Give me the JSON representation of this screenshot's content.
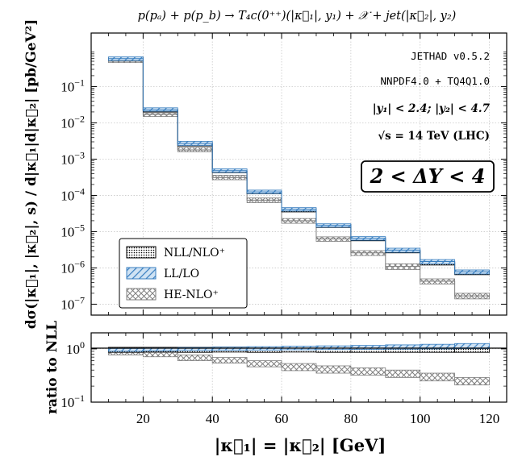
{
  "chart_data": {
    "type": "bar",
    "title": "p(pₐ) + p(p_b) → T₄c(0⁺⁺)(|κ⃗₁|, y₁) + 𝒳 + jet(|κ⃗₂|, y₂)",
    "xlabel": "|κ⃗₁| = |κ⃗₂| [GeV]",
    "ylabel": "dσ(|κ⃗₁|, |κ⃗₂|, s) / d|κ⃗₁|d|κ⃗₂| [pb/GeV²]",
    "ratio_ylabel": "ratio to NLL",
    "annotations": {
      "code": "JETHAD v0.5.2",
      "pdf": "NNPDF4.0 + TQ4Q1.0",
      "rapidity": "|y₁| < 2.4;  |y₂| < 4.7",
      "energy": "√s = 14 TeV (LHC)",
      "delta_y": "2 < ΔY < 4"
    },
    "xlim": [
      5,
      125
    ],
    "ylim": [
      5e-08,
      3
    ],
    "ratio_ylim": [
      0.1,
      2
    ],
    "bin_edges": [
      10,
      20,
      30,
      40,
      50,
      60,
      70,
      80,
      90,
      100,
      110,
      120
    ],
    "x_ticks": [
      20,
      40,
      60,
      80,
      100,
      120
    ],
    "x_tick_labels": [
      "20",
      "40",
      "60",
      "80",
      "100",
      "120"
    ],
    "y_ticks": [
      1e-07,
      1e-06,
      1e-05,
      0.0001,
      0.001,
      0.01,
      0.1
    ],
    "y_tick_labels": [
      {
        "base": "10",
        "exp": "−7"
      },
      {
        "base": "10",
        "exp": "−6"
      },
      {
        "base": "10",
        "exp": "−5"
      },
      {
        "base": "10",
        "exp": "−4"
      },
      {
        "base": "10",
        "exp": "−3"
      },
      {
        "base": "10",
        "exp": "−2"
      },
      {
        "base": "10",
        "exp": "−1"
      }
    ],
    "ratio_y_ticks": [
      0.1,
      1
    ],
    "ratio_y_tick_labels": [
      {
        "base": "10",
        "exp": "−1"
      },
      {
        "base": "10",
        "exp": "0"
      }
    ],
    "series": [
      {
        "name": "NLL/NLO⁺",
        "style": "dots",
        "color": "#000000",
        "central": [
          0.58,
          0.022,
          0.0026,
          0.00046,
          0.00012,
          3.9e-05,
          1.4e-05,
          6.2e-06,
          2.9e-06,
          1.4e-06,
          7.2e-07
        ],
        "low": [
          0.52,
          0.02,
          0.0023,
          0.00042,
          0.00011,
          3.5e-05,
          1.3e-05,
          5.6e-06,
          2.6e-06,
          1.2e-06,
          6.5e-07
        ],
        "high": [
          0.64,
          0.024,
          0.0029,
          0.00051,
          0.00013,
          4.3e-05,
          1.6e-05,
          6.8e-06,
          3.2e-06,
          1.6e-06,
          8e-07
        ]
      },
      {
        "name": "LL/LO",
        "style": "hatch",
        "color": "#3a7fc0",
        "central": [
          0.59,
          0.023,
          0.0027,
          0.00048,
          0.000125,
          4.1e-05,
          1.48e-05,
          6.5e-06,
          3.1e-06,
          1.5e-06,
          7.8e-07
        ],
        "low": [
          0.52,
          0.021,
          0.0024,
          0.00043,
          0.000112,
          3.7e-05,
          1.33e-05,
          5.8e-06,
          2.7e-06,
          1.3e-06,
          6.8e-07
        ],
        "high": [
          0.66,
          0.026,
          0.0031,
          0.00054,
          0.00014,
          4.6e-05,
          1.65e-05,
          7.3e-06,
          3.5e-06,
          1.7e-06,
          8.8e-07
        ]
      },
      {
        "name": "HE-NLO⁺",
        "style": "crosshatch",
        "color": "#888888",
        "central": [
          0.5,
          0.017,
          0.0018,
          0.00031,
          7.4e-05,
          2e-05,
          6.3e-06,
          2.6e-06,
          1.1e-06,
          4.3e-07,
          1.7e-07
        ],
        "low": [
          0.46,
          0.015,
          0.0016,
          0.00027,
          6.3e-05,
          1.7e-05,
          5.4e-06,
          2.2e-06,
          9e-07,
          3.6e-07,
          1.4e-07
        ],
        "high": [
          0.55,
          0.019,
          0.0021,
          0.00036,
          8.5e-05,
          2.3e-05,
          7.2e-06,
          3e-06,
          1.3e-06,
          5e-07,
          2e-07
        ]
      }
    ],
    "ratio_series": [
      {
        "name": "NLL/NLO⁺",
        "style": "dots",
        "color": "#000000",
        "low": [
          0.86,
          0.87,
          0.86,
          0.87,
          0.86,
          0.87,
          0.86,
          0.86,
          0.86,
          0.86,
          0.86
        ],
        "high": [
          1.07,
          1.07,
          1.07,
          1.08,
          1.07,
          1.07,
          1.07,
          1.08,
          1.07,
          1.08,
          1.08
        ]
      },
      {
        "name": "LL/LO",
        "style": "hatch",
        "color": "#3a7fc0",
        "low": [
          0.9,
          0.92,
          0.93,
          0.94,
          0.95,
          0.96,
          0.97,
          0.98,
          0.99,
          1.0,
          1.01
        ],
        "high": [
          1.02,
          1.04,
          1.06,
          1.08,
          1.1,
          1.12,
          1.14,
          1.16,
          1.19,
          1.22,
          1.26
        ]
      },
      {
        "name": "HE-NLO⁺",
        "style": "crosshatch",
        "color": "#888888",
        "low": [
          0.77,
          0.71,
          0.6,
          0.54,
          0.46,
          0.39,
          0.35,
          0.32,
          0.29,
          0.25,
          0.21
        ],
        "high": [
          0.96,
          0.86,
          0.77,
          0.69,
          0.6,
          0.53,
          0.48,
          0.44,
          0.4,
          0.35,
          0.29
        ]
      }
    ],
    "legend": [
      "NLL/NLO⁺",
      "LL/LO",
      "HE-NLO⁺"
    ],
    "legend_position": "bottom-left",
    "grid": true
  }
}
